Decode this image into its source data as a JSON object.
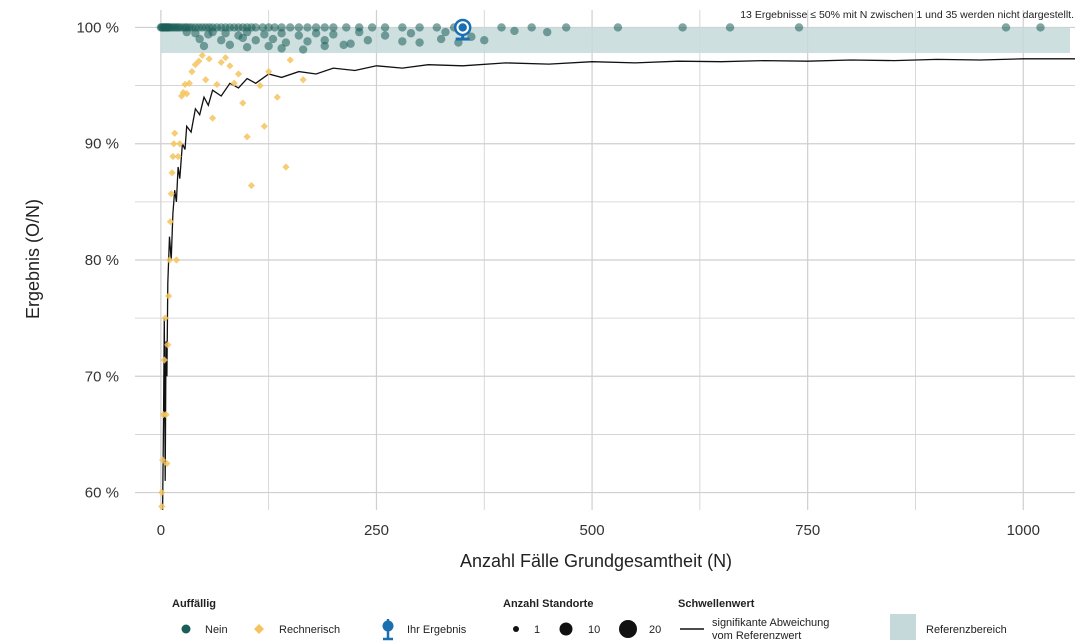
{
  "chart_data": {
    "type": "scatter",
    "xlabel": "Anzahl Fälle Grundgesamtheit (N)",
    "ylabel": "Ergebnis (O/N)",
    "xlim": [
      -30,
      1060
    ],
    "ylim": [
      58.5,
      101.5
    ],
    "x_ticks": [
      0,
      250,
      500,
      750,
      1000
    ],
    "x_tick_labels": [
      "0",
      "250",
      "500",
      "750",
      "1000"
    ],
    "y_ticks": [
      60,
      70,
      80,
      90,
      100
    ],
    "y_tick_labels": [
      "60 %",
      "70 %",
      "80 %",
      "90 %",
      "100 %"
    ],
    "grid": true,
    "note": "13 Ergebnisse ≤ 50% mit N zwischen 1 und 35 werden nicht dargestellt.",
    "reference_range": {
      "y_from": 97.8,
      "y_to": 100
    },
    "series": [
      {
        "name": "Nein",
        "marker": "circle",
        "color": "#1b5e57",
        "points": [
          [
            0,
            100
          ],
          [
            1,
            100
          ],
          [
            2,
            100
          ],
          [
            3,
            100
          ],
          [
            4,
            100
          ],
          [
            5,
            100
          ],
          [
            6,
            100
          ],
          [
            7,
            100
          ],
          [
            8,
            100
          ],
          [
            9,
            100
          ],
          [
            10,
            100
          ],
          [
            12,
            100
          ],
          [
            14,
            100
          ],
          [
            16,
            100
          ],
          [
            18,
            100
          ],
          [
            20,
            100
          ],
          [
            22,
            100
          ],
          [
            25,
            100
          ],
          [
            28,
            100
          ],
          [
            30,
            100
          ],
          [
            33,
            100
          ],
          [
            36,
            100
          ],
          [
            40,
            100
          ],
          [
            44,
            100
          ],
          [
            48,
            100
          ],
          [
            52,
            100
          ],
          [
            56,
            100
          ],
          [
            60,
            100
          ],
          [
            65,
            100
          ],
          [
            70,
            100
          ],
          [
            75,
            100
          ],
          [
            80,
            100
          ],
          [
            85,
            100
          ],
          [
            90,
            100
          ],
          [
            95,
            100
          ],
          [
            100,
            100
          ],
          [
            105,
            100
          ],
          [
            110,
            100
          ],
          [
            118,
            100
          ],
          [
            125,
            100
          ],
          [
            132,
            100
          ],
          [
            140,
            100
          ],
          [
            150,
            100
          ],
          [
            160,
            100
          ],
          [
            170,
            100
          ],
          [
            180,
            100
          ],
          [
            190,
            100
          ],
          [
            200,
            100
          ],
          [
            215,
            100
          ],
          [
            230,
            100
          ],
          [
            245,
            100
          ],
          [
            260,
            100
          ],
          [
            280,
            100
          ],
          [
            300,
            100
          ],
          [
            320,
            100
          ],
          [
            340,
            100
          ],
          [
            395,
            100
          ],
          [
            430,
            100
          ],
          [
            470,
            100
          ],
          [
            530,
            100
          ],
          [
            605,
            100
          ],
          [
            660,
            100
          ],
          [
            740,
            100
          ],
          [
            980,
            100
          ],
          [
            1020,
            100
          ],
          [
            30,
            99.6
          ],
          [
            40,
            99.5
          ],
          [
            55,
            99.4
          ],
          [
            60,
            99.6
          ],
          [
            75,
            99.5
          ],
          [
            90,
            99.3
          ],
          [
            100,
            99.6
          ],
          [
            120,
            99.4
          ],
          [
            140,
            99.5
          ],
          [
            160,
            99.3
          ],
          [
            180,
            99.5
          ],
          [
            200,
            99.4
          ],
          [
            230,
            99.6
          ],
          [
            260,
            99.3
          ],
          [
            290,
            99.5
          ],
          [
            330,
            99.6
          ],
          [
            360,
            99.2
          ],
          [
            410,
            99.7
          ],
          [
            448,
            99.6
          ],
          [
            45,
            99.0
          ],
          [
            70,
            98.9
          ],
          [
            95,
            99.1
          ],
          [
            110,
            98.9
          ],
          [
            130,
            99.0
          ],
          [
            145,
            98.7
          ],
          [
            170,
            98.8
          ],
          [
            190,
            98.9
          ],
          [
            220,
            98.6
          ],
          [
            240,
            98.9
          ],
          [
            280,
            98.8
          ],
          [
            300,
            98.7
          ],
          [
            325,
            99.0
          ],
          [
            345,
            98.7
          ],
          [
            375,
            98.9
          ],
          [
            50,
            98.4
          ],
          [
            80,
            98.5
          ],
          [
            100,
            98.3
          ],
          [
            125,
            98.4
          ],
          [
            140,
            98.2
          ],
          [
            165,
            98.1
          ],
          [
            190,
            98.4
          ],
          [
            212,
            98.5
          ]
        ]
      },
      {
        "name": "Rechnerisch",
        "marker": "diamond",
        "color": "#f5c45e",
        "points": [
          [
            1,
            60
          ],
          [
            1,
            58.8
          ],
          [
            2,
            62.8
          ],
          [
            3,
            66.7
          ],
          [
            4,
            71.4
          ],
          [
            5,
            75
          ],
          [
            6,
            66.7
          ],
          [
            7,
            62.5
          ],
          [
            8,
            72.7
          ],
          [
            9,
            76.9
          ],
          [
            10,
            80
          ],
          [
            11,
            83.3
          ],
          [
            12,
            85.7
          ],
          [
            13,
            87.5
          ],
          [
            14,
            88.9
          ],
          [
            15,
            90
          ],
          [
            16,
            90.9
          ],
          [
            18,
            80
          ],
          [
            20,
            88.9
          ],
          [
            22,
            90
          ],
          [
            24,
            94.1
          ],
          [
            26,
            94.4
          ],
          [
            28,
            95.1
          ],
          [
            30,
            94.3
          ],
          [
            33,
            95.2
          ],
          [
            36,
            96.2
          ],
          [
            40,
            96.8
          ],
          [
            44,
            97.1
          ],
          [
            48,
            97.6
          ],
          [
            52,
            95.5
          ],
          [
            56,
            97.3
          ],
          [
            60,
            92.2
          ],
          [
            65,
            95.1
          ],
          [
            70,
            97.0
          ],
          [
            75,
            97.4
          ],
          [
            80,
            96.7
          ],
          [
            85,
            95.2
          ],
          [
            90,
            96.0
          ],
          [
            95,
            93.5
          ],
          [
            100,
            90.6
          ],
          [
            105,
            86.4
          ],
          [
            115,
            95.0
          ],
          [
            120,
            91.5
          ],
          [
            125,
            96.2
          ],
          [
            135,
            94.0
          ],
          [
            145,
            88.0
          ],
          [
            150,
            97.2
          ],
          [
            165,
            95.5
          ]
        ]
      },
      {
        "name": "Ihr Ergebnis",
        "marker": "circle-errorbar",
        "color": "#1a6fb0",
        "points": [
          [
            350,
            100
          ]
        ],
        "error_low": [
          99.0
        ]
      }
    ],
    "threshold_label": "signifikante Abweichung vom Referenzwert",
    "threshold_line": [
      [
        2,
        58.5
      ],
      [
        3,
        66
      ],
      [
        4,
        75
      ],
      [
        5,
        61
      ],
      [
        6,
        73
      ],
      [
        7,
        70
      ],
      [
        8,
        78
      ],
      [
        10,
        82
      ],
      [
        12,
        80
      ],
      [
        14,
        84
      ],
      [
        16,
        86
      ],
      [
        18,
        85
      ],
      [
        20,
        88
      ],
      [
        22,
        87
      ],
      [
        25,
        90
      ],
      [
        28,
        89.5
      ],
      [
        30,
        91.5
      ],
      [
        35,
        91
      ],
      [
        40,
        93
      ],
      [
        45,
        92.5
      ],
      [
        50,
        94
      ],
      [
        55,
        93.3
      ],
      [
        60,
        94.6
      ],
      [
        70,
        94.1
      ],
      [
        80,
        95.2
      ],
      [
        90,
        94.8
      ],
      [
        100,
        95.6
      ],
      [
        110,
        95.2
      ],
      [
        125,
        96.0
      ],
      [
        140,
        95.7
      ],
      [
        160,
        96.2
      ],
      [
        180,
        96.0
      ],
      [
        200,
        96.5
      ],
      [
        225,
        96.3
      ],
      [
        250,
        96.7
      ],
      [
        280,
        96.5
      ],
      [
        310,
        96.8
      ],
      [
        350,
        96.7
      ],
      [
        400,
        96.95
      ],
      [
        450,
        96.85
      ],
      [
        500,
        97.05
      ],
      [
        550,
        96.95
      ],
      [
        600,
        97.1
      ],
      [
        650,
        97.05
      ],
      [
        700,
        97.15
      ],
      [
        750,
        97.1
      ],
      [
        800,
        97.2
      ],
      [
        850,
        97.15
      ],
      [
        900,
        97.25
      ],
      [
        950,
        97.2
      ],
      [
        1000,
        97.3
      ],
      [
        1060,
        97.3
      ]
    ],
    "legend": {
      "auffaellig_title": "Auffällig",
      "auffaellig_items": [
        "Nein",
        "Rechnerisch",
        "Ihr Ergebnis"
      ],
      "standorte_title": "Anzahl Standorte",
      "standorte_items": [
        "1",
        "10",
        "20"
      ],
      "schwellenwert_title": "Schwellenwert",
      "schwellenwert_lines": [
        "signifikante Abweichung",
        "vom Referenzwert"
      ],
      "referenzbereich_label": "Referenzbereich"
    },
    "colors": {
      "nein": "#1b5e57",
      "rechnerisch": "#f5c45e",
      "ihr_ergebnis": "#1a6fb0",
      "reference_band": "#c5d9db",
      "grid": "#cfcfcf",
      "threshold": "#111111"
    }
  }
}
